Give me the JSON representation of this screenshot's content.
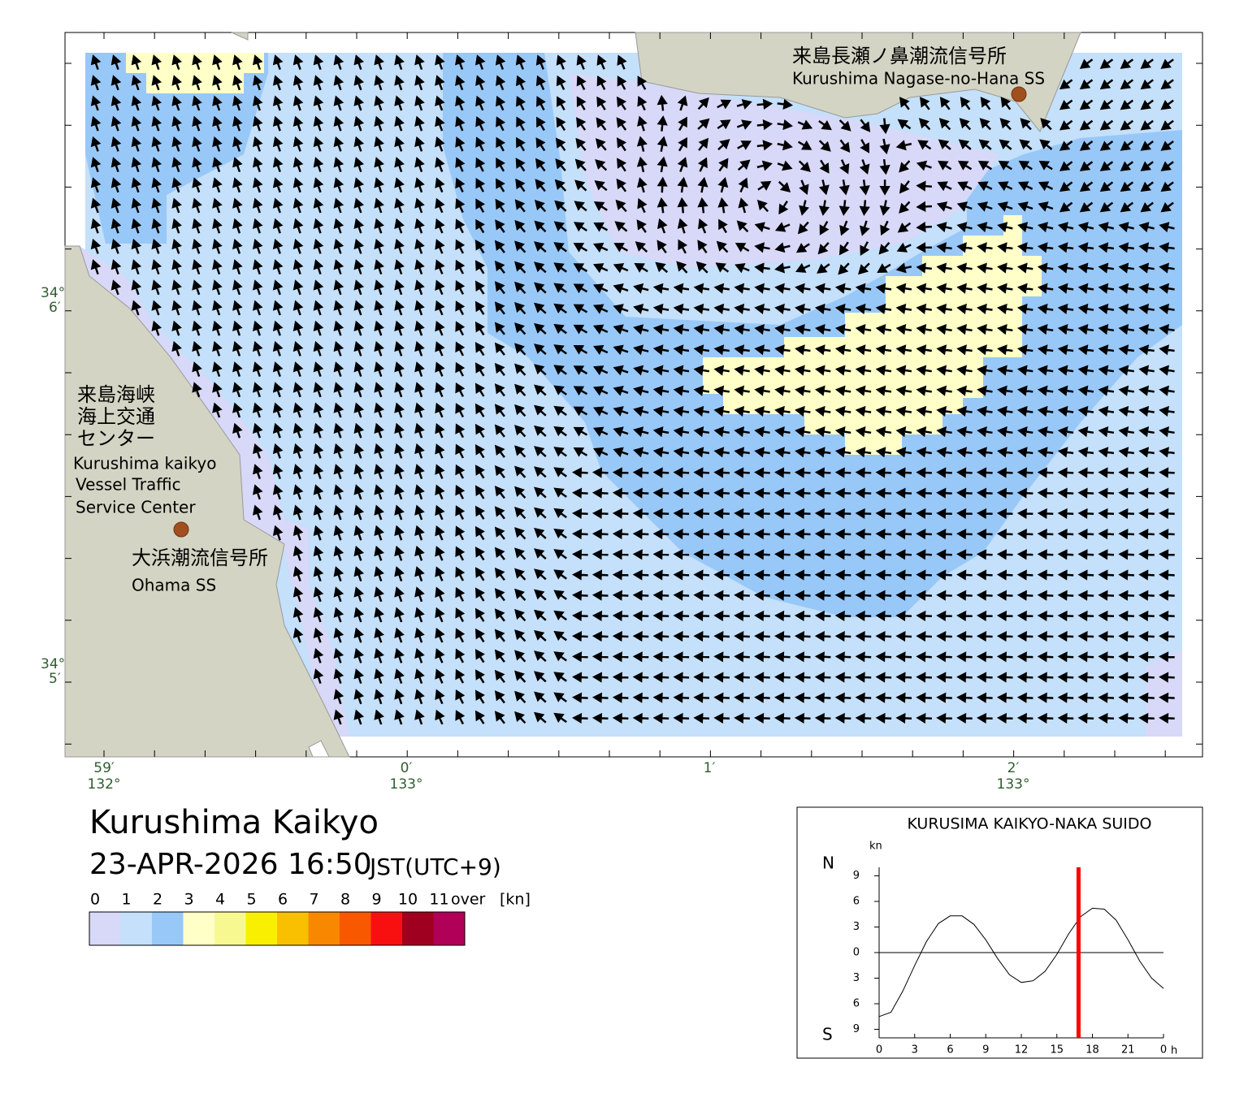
{
  "map": {
    "labels": [
      {
        "text": "来島長瀬ノ鼻潮流信号所"
      },
      {
        "text": "Kurushima Nagase-no-Hana SS"
      },
      {
        "text": "来島海峡"
      },
      {
        "text": "海上交通"
      },
      {
        "text": "センター"
      },
      {
        "text": "Kurushima kaikyo"
      },
      {
        "text": "Vessel Traffic"
      },
      {
        "text": "Service Center"
      },
      {
        "text": "大浜潮流信号所"
      },
      {
        "text": "Ohama SS"
      }
    ],
    "lat_ticks": [
      {
        "deg": "34°",
        "min": "6′"
      },
      {
        "deg": "34°",
        "min": "5′"
      }
    ],
    "lon_ticks": [
      {
        "min": "59′",
        "deg": "132°"
      },
      {
        "min": "0′",
        "deg": "133°"
      },
      {
        "min": "1′"
      },
      {
        "min": "2′",
        "deg": "133°"
      }
    ]
  },
  "title": "Kurushima Kaikyo",
  "datetime": "23-APR-2026 16:50",
  "timezone": "JST(UTC+9)",
  "legend": {
    "ticks": [
      0,
      1,
      2,
      3,
      4,
      5,
      6,
      7,
      8,
      9,
      10,
      11
    ],
    "over": "over",
    "unit": "[kn]",
    "colors": [
      "#d8d8f8",
      "#c4e0fa",
      "#98c8f8",
      "#ffffc8",
      "#f8f890",
      "#f8f000",
      "#f8c000",
      "#f88800",
      "#f85800",
      "#f81010",
      "#a00020",
      "#b00058"
    ]
  },
  "chart_data": {
    "type": "line",
    "title": "KURUSIMA KAIKYO-NAKA SUIDO",
    "y_unit": "kn",
    "y_top": "N",
    "y_bottom": "S",
    "x_unit": "h",
    "color": "#000000",
    "x": [
      0,
      1,
      2,
      3,
      4,
      5,
      6,
      7,
      8,
      9,
      10,
      11,
      12,
      13,
      14,
      15,
      16,
      17,
      18,
      19,
      20,
      21,
      22,
      23,
      24
    ],
    "values": [
      -7.5,
      -7,
      -4.5,
      -1.5,
      1.3,
      3.4,
      4.3,
      4.3,
      3.3,
      1.5,
      -0.7,
      -2.6,
      -3.5,
      -3.3,
      -2.2,
      -0.2,
      2.2,
      4.2,
      5.2,
      5.1,
      3.8,
      1.5,
      -1.0,
      -3.0,
      -4.2
    ],
    "xlim": [
      0,
      24
    ],
    "xticks": [
      0,
      3,
      6,
      9,
      12,
      15,
      18,
      21,
      {
        "value": 24,
        "label": "0"
      }
    ],
    "ylim": [
      -10,
      10
    ],
    "yticks": [
      9,
      6,
      3,
      0,
      {
        "value": -3,
        "label": "3"
      },
      {
        "value": -6,
        "label": "6"
      },
      {
        "value": -9,
        "label": "9"
      }
    ],
    "now": 16.83,
    "now_color": "#ff0000"
  }
}
